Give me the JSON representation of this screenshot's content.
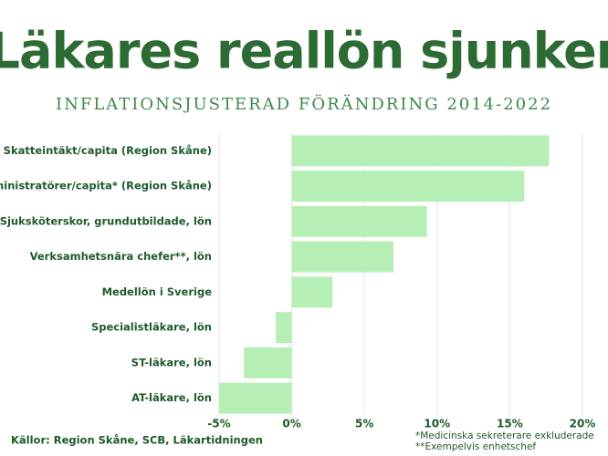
{
  "chart_data": {
    "type": "barh",
    "title": "Läkares reallön sjunker",
    "subtitle": "INFLATIONSJUSTERAD FÖRÄNDRING 2014-2022",
    "categories": [
      "Skatteintäkt/capita (Region Skåne)",
      "Administratörer/capita* (Region Skåne)",
      "Sjuksköterskor, grundutbildade, lön",
      "Verksamhetsnära chefer**, lön",
      "Medellön i Sverige",
      "Specialistläkare, lön",
      "ST-läkare, lön",
      "AT-läkare, lön"
    ],
    "values": [
      17.7,
      16.0,
      9.3,
      7.0,
      2.8,
      -1.1,
      -3.3,
      -5.0
    ],
    "color": "#b6efb6",
    "xlim": [
      -5,
      20
    ],
    "xticks": [
      {
        "value": -5,
        "label": "-5%"
      },
      {
        "value": 0,
        "label": "0%"
      },
      {
        "value": 5,
        "label": "5%"
      },
      {
        "value": 10,
        "label": "10%"
      },
      {
        "value": 15,
        "label": "15%"
      },
      {
        "value": 20,
        "label": "20%"
      }
    ],
    "grid": true,
    "source": "Källor: Region Skåne, SCB, Läkartidningen",
    "footnotes": [
      "*Medicinska sekreterare exkluderade",
      "**Exempelvis enhetschef"
    ]
  }
}
